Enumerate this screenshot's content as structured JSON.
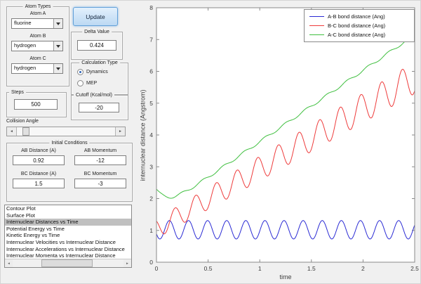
{
  "colors": {
    "figure_bg": "#f0f0f0",
    "axes_bg": "#ffffff",
    "axes_frame": "#8a8a8a",
    "update_button_accent": "#62a0d8",
    "list_selection": "#c0c0c0"
  },
  "icons": {
    "dropdown_arrow": "dropdown-triangle",
    "slider_left_arrow": "◄",
    "slider_right_arrow": "►",
    "scrollbar_left_arrow": "◄",
    "scrollbar_right_arrow": "►"
  },
  "left_panel": {
    "atom_types": {
      "title": "Atom Types",
      "atom_a_label": "Atom A",
      "atom_a_value": "fluorine",
      "atom_b_label": "Atom B",
      "atom_b_value": "hydrogen",
      "atom_c_label": "Atom C",
      "atom_c_value": "hydrogen"
    },
    "update_button": "Update",
    "delta_value": {
      "title": "Delta Value",
      "value": "0.424"
    },
    "calculation_type": {
      "title": "Calculation Type",
      "options": [
        {
          "label": "Dynamics",
          "selected": true
        },
        {
          "label": "MEP",
          "selected": false
        }
      ]
    },
    "steps": {
      "title": "Steps",
      "value": "500"
    },
    "cutoff": {
      "title": "Cutoff (Kcal/mol)",
      "value": "-20"
    },
    "collision_angle": {
      "label": "Collision Angle"
    },
    "initial_conditions": {
      "title": "Initial Conditions",
      "ab_distance_label": "AB Distance (A)",
      "ab_distance_value": "0.92",
      "ab_momentum_label": "AB Momentum",
      "ab_momentum_value": "-12",
      "bc_distance_label": "BC Distance (A)",
      "bc_distance_value": "1.5",
      "bc_momentum_label": "BC Momentum",
      "bc_momentum_value": "-3"
    },
    "plot_list": {
      "items": [
        "Contour Plot",
        "Surface Plot",
        "Internuclear Distances vs Time",
        "Potential Energy vs Time",
        "Kinetic Energy vs Time",
        "Internuclear Velocities vs Internuclear Distance",
        "Internuclear Accelerations vs Internuclear Distance",
        "Internuclear Momenta vs Internuclear Distance"
      ],
      "selected_index": 2
    }
  },
  "chart_data": {
    "type": "line",
    "title": "",
    "xlabel": "time",
    "ylabel": "internuclear distance (Angstrom)",
    "xlim": [
      0,
      2.5
    ],
    "ylim": [
      0,
      8
    ],
    "xticks": [
      0,
      0.5,
      1,
      1.5,
      2,
      2.5
    ],
    "yticks": [
      0,
      1,
      2,
      3,
      4,
      5,
      6,
      7,
      8
    ],
    "grid": false,
    "legend_position": "top-right",
    "model_note": "value(t) = base0 + slope*t + dip*exp(-t/dipDecay) + (amp0 + ampSlope*t)*sin(2*pi*t/period + phase); values estimated from plot",
    "series": [
      {
        "name": "A-B bond distance (Ang)",
        "color": "#2a2ad4",
        "model": {
          "base0": 1.02,
          "slope": 0,
          "amp0": 0.29,
          "ampSlope": 0,
          "period": 0.185,
          "phase": 3.6
        },
        "summary": "oscillates steadily between ~0.73 and ~1.31 Ang for the whole run"
      },
      {
        "name": "B-C bond distance (Ang)",
        "color": "#ee3b3b",
        "model": {
          "base0": 1.05,
          "slope": 1.9,
          "amp0": 0.3,
          "ampSlope": 0.08,
          "period": 0.2,
          "phase": 2.2
        },
        "summary": "starts ~1.3, dips to ~0.9, then rises with growing oscillations to ~6 at t=2.5"
      },
      {
        "name": "A-C bond distance (Ang)",
        "color": "#3fbf3f",
        "model": {
          "base0": 1.55,
          "slope": 2.24,
          "dip": 0.75,
          "dipDecay": 0.1,
          "amp0": 0.04,
          "ampSlope": 0,
          "period": 0.2,
          "phase": 0
        },
        "summary": "starts ~2.3, dips to ~2.05 near t=0.15, then rises nearly linearly to ~7.15 at t=2.5"
      }
    ]
  }
}
